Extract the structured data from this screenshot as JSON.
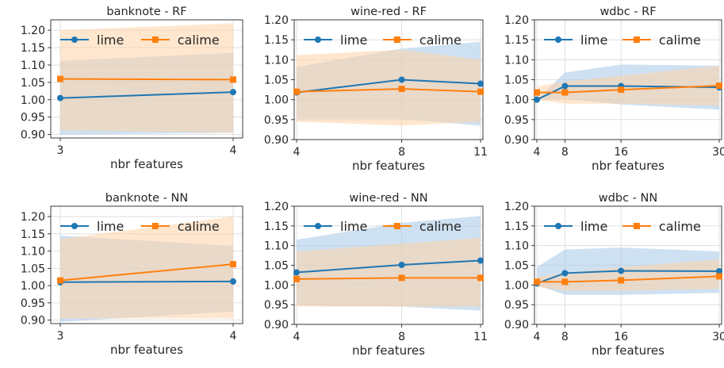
{
  "colors": {
    "lime": "#1f77b4",
    "calime": "#ff7f0e",
    "lime_band": "#a6c9e8",
    "calime_band": "#ffd3a8",
    "grid": "#d9d9d9",
    "axis": "#262626"
  },
  "chart_data": [
    {
      "type": "line",
      "title": "banknote - RF",
      "xlabel": "nbr features",
      "x": [
        3,
        4
      ],
      "x_ticks": [
        "3",
        "4"
      ],
      "ylim": [
        0.89,
        1.23
      ],
      "y_ticks": [
        "0.90",
        "0.95",
        "1.00",
        "1.05",
        "1.10",
        "1.15",
        "1.20"
      ],
      "grid": true,
      "legend": "top",
      "series": [
        {
          "name": "lime",
          "marker": "circle",
          "values": [
            1.005,
            1.022
          ],
          "lower": [
            0.9,
            0.905
          ],
          "upper": [
            1.112,
            1.135
          ]
        },
        {
          "name": "calime",
          "marker": "square",
          "values": [
            1.06,
            1.058
          ],
          "lower": [
            0.912,
            0.905
          ],
          "upper": [
            1.2,
            1.22
          ]
        }
      ]
    },
    {
      "type": "line",
      "title": "wine-red - RF",
      "xlabel": "nbr features",
      "x": [
        4,
        8,
        11
      ],
      "x_ticks": [
        "4",
        "8",
        "11"
      ],
      "ylim": [
        0.9,
        1.2
      ],
      "y_ticks": [
        "0.90",
        "0.95",
        "1.00",
        "1.05",
        "1.10",
        "1.15",
        "1.20"
      ],
      "grid": true,
      "legend": "top",
      "series": [
        {
          "name": "lime",
          "marker": "circle",
          "values": [
            1.018,
            1.05,
            1.04
          ],
          "lower": [
            0.952,
            0.952,
            0.935
          ],
          "upper": [
            1.082,
            1.128,
            1.145
          ]
        },
        {
          "name": "calime",
          "marker": "square",
          "values": [
            1.02,
            1.027,
            1.02
          ],
          "lower": [
            0.945,
            0.935,
            0.945
          ],
          "upper": [
            1.112,
            1.125,
            1.1
          ]
        }
      ]
    },
    {
      "type": "line",
      "title": "wdbc - RF",
      "xlabel": "nbr features",
      "x": [
        4,
        8,
        16,
        30
      ],
      "x_ticks": [
        "4",
        "8",
        "16",
        "30"
      ],
      "ylim": [
        0.9,
        1.2
      ],
      "y_ticks": [
        "0.90",
        "0.95",
        "1.00",
        "1.05",
        "1.10",
        "1.15",
        "1.20"
      ],
      "grid": true,
      "legend": "top",
      "series": [
        {
          "name": "lime",
          "marker": "circle",
          "values": [
            1.0,
            1.034,
            1.034,
            1.031
          ],
          "lower": [
            1.0,
            1.002,
            0.988,
            0.975
          ],
          "upper": [
            1.0,
            1.068,
            1.088,
            1.085
          ]
        },
        {
          "name": "calime",
          "marker": "square",
          "values": [
            1.018,
            1.018,
            1.025,
            1.035
          ],
          "lower": [
            1.0,
            0.99,
            0.99,
            0.985
          ],
          "upper": [
            1.033,
            1.045,
            1.06,
            1.085
          ]
        }
      ]
    },
    {
      "type": "line",
      "title": "banknote - NN",
      "xlabel": "nbr features",
      "x": [
        3,
        4
      ],
      "x_ticks": [
        "3",
        "4"
      ],
      "ylim": [
        0.89,
        1.23
      ],
      "y_ticks": [
        "0.90",
        "0.95",
        "1.00",
        "1.05",
        "1.10",
        "1.15",
        "1.20"
      ],
      "grid": true,
      "legend": "top",
      "series": [
        {
          "name": "lime",
          "marker": "circle",
          "values": [
            1.01,
            1.012
          ],
          "lower": [
            0.895,
            0.925
          ],
          "upper": [
            1.145,
            1.115
          ]
        },
        {
          "name": "calime",
          "marker": "square",
          "values": [
            1.015,
            1.062
          ],
          "lower": [
            0.905,
            0.905
          ],
          "upper": [
            1.135,
            1.2
          ]
        }
      ]
    },
    {
      "type": "line",
      "title": "wine-red - NN",
      "xlabel": "nbr features",
      "x": [
        4,
        8,
        11
      ],
      "x_ticks": [
        "4",
        "8",
        "11"
      ],
      "ylim": [
        0.9,
        1.2
      ],
      "y_ticks": [
        "0.90",
        "0.95",
        "1.00",
        "1.05",
        "1.10",
        "1.15",
        "1.20"
      ],
      "grid": true,
      "legend": "top",
      "series": [
        {
          "name": "lime",
          "marker": "circle",
          "values": [
            1.032,
            1.051,
            1.062
          ],
          "lower": [
            0.948,
            0.945,
            0.935
          ],
          "upper": [
            1.115,
            1.158,
            1.175
          ]
        },
        {
          "name": "calime",
          "marker": "square",
          "values": [
            1.015,
            1.018,
            1.018
          ],
          "lower": [
            0.945,
            0.945,
            0.945
          ],
          "upper": [
            1.085,
            1.105,
            1.12
          ]
        }
      ]
    },
    {
      "type": "line",
      "title": "wdbc - NN",
      "xlabel": "nbr features",
      "x": [
        4,
        8,
        16,
        30
      ],
      "x_ticks": [
        "4",
        "8",
        "16",
        "30"
      ],
      "ylim": [
        0.9,
        1.2
      ],
      "y_ticks": [
        "0.90",
        "0.95",
        "1.00",
        "1.05",
        "1.10",
        "1.15",
        "1.20"
      ],
      "grid": true,
      "legend": "top",
      "series": [
        {
          "name": "lime",
          "marker": "circle",
          "values": [
            1.004,
            1.03,
            1.036,
            1.035
          ],
          "lower": [
            1.0,
            0.975,
            0.975,
            0.98
          ],
          "upper": [
            1.045,
            1.09,
            1.095,
            1.085
          ]
        },
        {
          "name": "calime",
          "marker": "square",
          "values": [
            1.008,
            1.008,
            1.012,
            1.022
          ],
          "lower": [
            0.995,
            0.985,
            0.985,
            0.99
          ],
          "upper": [
            1.02,
            1.03,
            1.045,
            1.065
          ]
        }
      ]
    }
  ]
}
